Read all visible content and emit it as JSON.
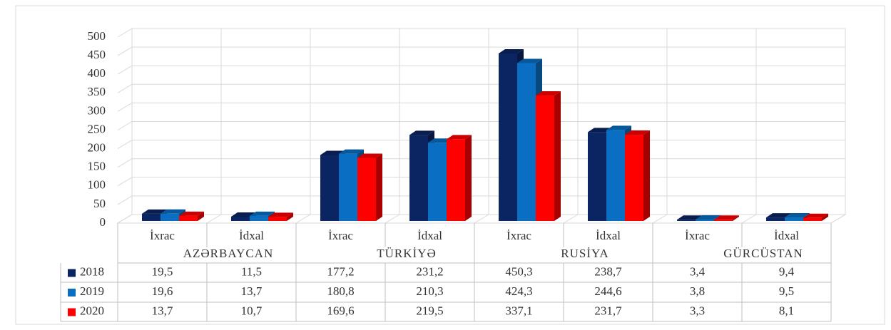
{
  "chart_data": {
    "type": "bar3d",
    "categories": [
      "İxrac",
      "İdxal",
      "İxrac",
      "İdxal",
      "İxrac",
      "İdxal",
      "İxrac",
      "İdxal"
    ],
    "groups": [
      "AZƏRBAYCAN",
      "TÜRKİYƏ",
      "RUSİYA",
      "GÜRCÜSTAN"
    ],
    "series": [
      {
        "name": "2018",
        "color": "#0b2462",
        "values": [
          19.5,
          11.5,
          177.2,
          231.2,
          450.3,
          238.7,
          3.4,
          9.4
        ],
        "value_labels": [
          "19,5",
          "11,5",
          "177,2",
          "231,2",
          "450,3",
          "238,7",
          "3,4",
          "9,4"
        ]
      },
      {
        "name": "2019",
        "color": "#0a6fc2",
        "values": [
          19.6,
          13.7,
          180.8,
          210.3,
          424.3,
          244.6,
          3.8,
          9.5
        ],
        "value_labels": [
          "19,6",
          "13,7",
          "180,8",
          "210,3",
          "424,3",
          "244,6",
          "3,8",
          "9,5"
        ]
      },
      {
        "name": "2020",
        "color": "#ff0000",
        "values": [
          13.7,
          10.7,
          169.6,
          219.5,
          337.1,
          231.7,
          3.3,
          8.1
        ],
        "value_labels": [
          "13,7",
          "10,7",
          "169,6",
          "219,5",
          "337,1",
          "231,7",
          "3,3",
          "8,1"
        ]
      }
    ],
    "ylim": [
      0,
      500
    ],
    "yticks": [
      0,
      50,
      100,
      150,
      200,
      250,
      300,
      350,
      400,
      450,
      500
    ],
    "grid": true
  }
}
